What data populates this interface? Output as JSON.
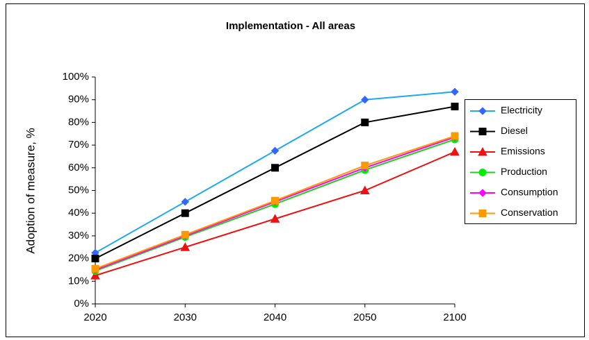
{
  "chart_data": {
    "type": "line",
    "title": "Implementation - All areas",
    "y_label": "Adoption of measure, %",
    "categories": [
      "2020",
      "2030",
      "2040",
      "2050",
      "2100"
    ],
    "ylim": [
      0,
      100
    ],
    "yticks": [
      {
        "value": 0,
        "label": "0%"
      },
      {
        "value": 10,
        "label": "10%"
      },
      {
        "value": 20,
        "label": "20%"
      },
      {
        "value": 30,
        "label": "30%"
      },
      {
        "value": 40,
        "label": "40%"
      },
      {
        "value": 50,
        "label": "50%"
      },
      {
        "value": 60,
        "label": "60%"
      },
      {
        "value": 70,
        "label": "70%"
      },
      {
        "value": 80,
        "label": "80%"
      },
      {
        "value": 90,
        "label": "90%"
      },
      {
        "value": 100,
        "label": "100%"
      }
    ],
    "legend": "right",
    "series": [
      {
        "name": "Electricity",
        "color": "#1ea9f0",
        "marker_color": "#3366ff",
        "marker": "diamond",
        "values": [
          22.5,
          45,
          67.5,
          90,
          93.5
        ]
      },
      {
        "name": "Diesel",
        "color": "#000000",
        "marker_color": "#000000",
        "marker": "square",
        "values": [
          20,
          40,
          60,
          80,
          87
        ]
      },
      {
        "name": "Emissions",
        "color": "#ee1111",
        "marker_color": "#ee1111",
        "marker": "triangle",
        "values": [
          12.5,
          25,
          37.5,
          50,
          67
        ]
      },
      {
        "name": "Production",
        "color": "#22cc22",
        "marker_color": "#00ee00",
        "marker": "circle",
        "values": [
          14.5,
          29.5,
          44,
          59,
          72.5
        ]
      },
      {
        "name": "Consumption",
        "color": "#ff00ff",
        "marker_color": "#ff00ff",
        "marker": "diamond",
        "values": [
          15,
          30,
          45,
          60,
          73.5
        ]
      },
      {
        "name": "Conservation",
        "color": "#ff9900",
        "marker_color": "#ff9900",
        "marker": "square",
        "values": [
          15.5,
          30.5,
          45.5,
          61,
          74
        ]
      }
    ]
  }
}
